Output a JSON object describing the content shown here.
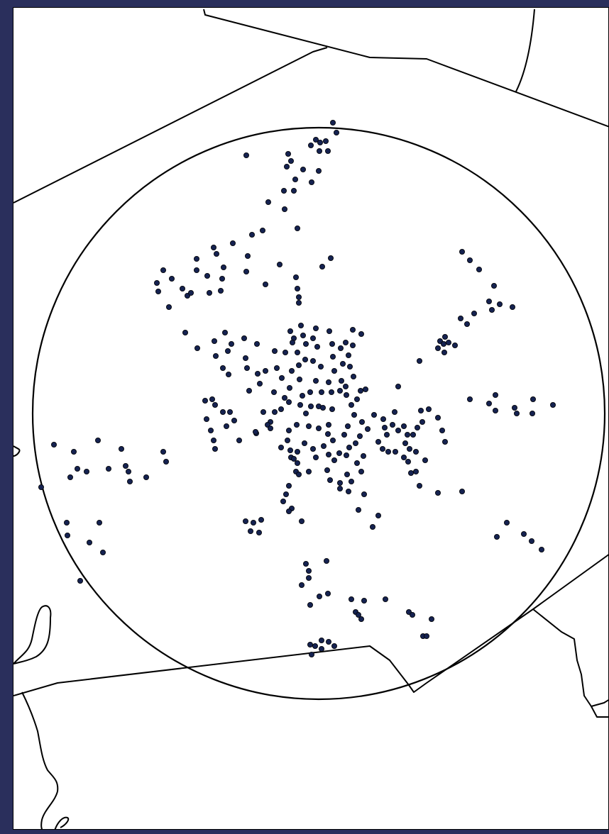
{
  "map": {
    "colors": {
      "frame": "#2a2f5c",
      "background": "#ffffff",
      "boundary_line": "#000000",
      "point_fill": "#152250"
    },
    "layers": [
      "boundary-lines",
      "coastline",
      "radius-circle",
      "point-markers"
    ],
    "point_count": 412
  }
}
